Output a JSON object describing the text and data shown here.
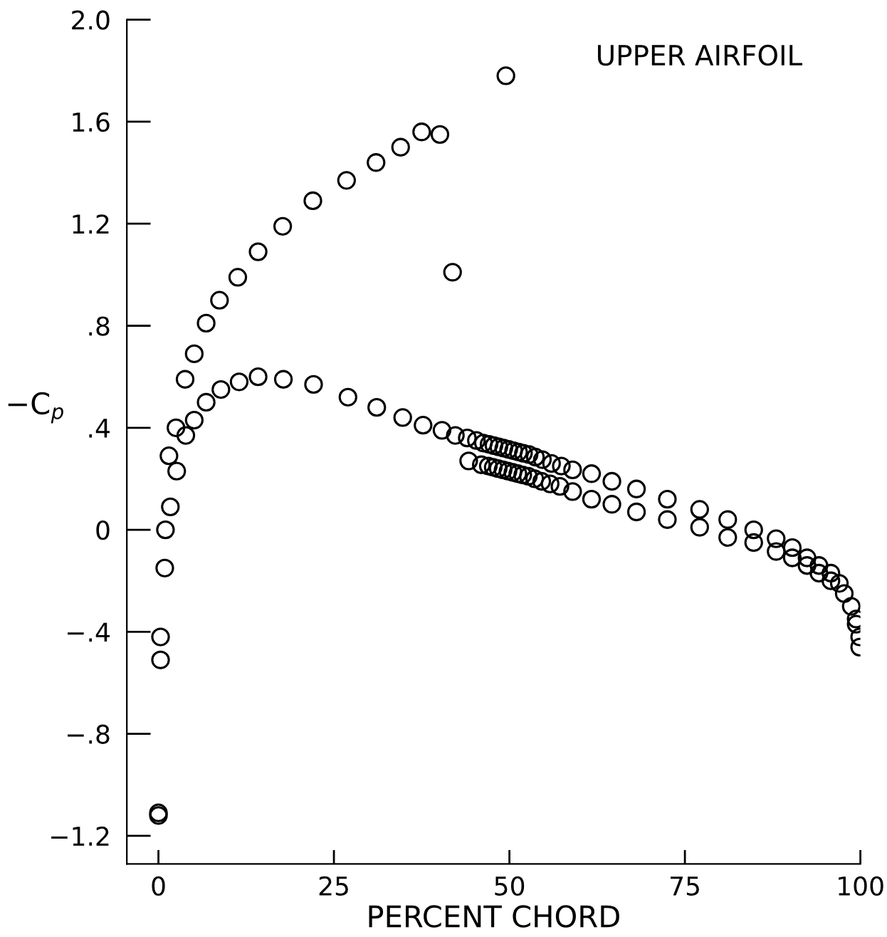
{
  "chart_data": {
    "type": "scatter",
    "xlabel": "PERCENT CHORD",
    "ylabel": "−C$_{p}$",
    "annotations": [
      "UPPER AIRFOIL"
    ],
    "xlim": [
      -4.5,
      100
    ],
    "ylim": [
      -1.31,
      2.0
    ],
    "xticks": [
      0,
      25,
      50,
      75,
      100
    ],
    "yticks": [
      {
        "value": -1.2,
        "label": "−1.2"
      },
      {
        "value": -0.8,
        "label": "−.8"
      },
      {
        "value": -0.4,
        "label": "−.4"
      },
      0,
      {
        "value": 0.4,
        "label": ".4"
      },
      {
        "value": 0.8,
        "label": ".8"
      },
      1.2,
      1.6,
      {
        "value": 2.0,
        "label": "2.0"
      }
    ],
    "grid": false,
    "marker": "circle",
    "series": [
      {
        "color": "#000000",
        "x": [
          0,
          0,
          0.3,
          0.3,
          0.9,
          1.0,
          1.7,
          1.5,
          2.6,
          2.5,
          3.9,
          5.1,
          3.8,
          5.1,
          6.8,
          8.7,
          11.3,
          14.2,
          17.7,
          22.0,
          26.8,
          31.0,
          34.5,
          37.5,
          40.1,
          41.9,
          49.5,
          6.8,
          8.9,
          11.5,
          14.2,
          17.8,
          22.1,
          27.0,
          31.1,
          34.8,
          37.7,
          40.4,
          42.3,
          44.0,
          45.3,
          46.3,
          47.1,
          47.8,
          48.5,
          49.2,
          49.9,
          50.6,
          51.3,
          52.0,
          52.8,
          53.7,
          54.7,
          56.0,
          57.4,
          44.2,
          46.0,
          47.0,
          47.7,
          48.4,
          49.1,
          49.8,
          50.5,
          51.2,
          51.9,
          52.7,
          53.6,
          54.6,
          55.8,
          57.2,
          59.0,
          61.7,
          64.6,
          68.1,
          72.5,
          59.0,
          61.7,
          64.6,
          68.1,
          72.5,
          77.1,
          77.1,
          81.1,
          81.1,
          84.8,
          84.8,
          88.0,
          88.0,
          90.3,
          90.3,
          92.4,
          92.4,
          94.1,
          94.1,
          95.8,
          95.8,
          97.0,
          97.7,
          98.7,
          99.4,
          99.4,
          99.9,
          99.9
        ],
        "values": [
          -1.11,
          -1.12,
          -0.42,
          -0.51,
          -0.15,
          0.0,
          0.09,
          0.29,
          0.23,
          0.4,
          0.37,
          0.43,
          0.59,
          0.69,
          0.81,
          0.9,
          0.99,
          1.09,
          1.19,
          1.29,
          1.37,
          1.44,
          1.5,
          1.56,
          1.55,
          1.01,
          1.78,
          0.5,
          0.55,
          0.58,
          0.6,
          0.59,
          0.57,
          0.52,
          0.48,
          0.44,
          0.41,
          0.39,
          0.37,
          0.36,
          0.35,
          0.34,
          0.335,
          0.33,
          0.325,
          0.32,
          0.315,
          0.31,
          0.305,
          0.3,
          0.295,
          0.285,
          0.275,
          0.26,
          0.25,
          0.27,
          0.255,
          0.25,
          0.245,
          0.24,
          0.235,
          0.23,
          0.225,
          0.22,
          0.215,
          0.21,
          0.2,
          0.19,
          0.18,
          0.17,
          0.235,
          0.22,
          0.19,
          0.16,
          0.12,
          0.15,
          0.12,
          0.1,
          0.07,
          0.04,
          0.08,
          0.01,
          0.04,
          -0.03,
          0.0,
          -0.05,
          -0.035,
          -0.085,
          -0.07,
          -0.11,
          -0.11,
          -0.14,
          -0.14,
          -0.17,
          -0.17,
          -0.2,
          -0.21,
          -0.25,
          -0.3,
          -0.35,
          -0.37,
          -0.42,
          -0.46
        ]
      }
    ]
  }
}
